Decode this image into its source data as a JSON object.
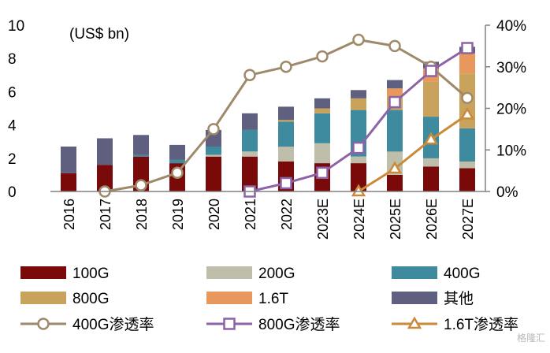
{
  "chart_data": {
    "type": "bar",
    "stacked": true,
    "unit_label": "(US$ bn)",
    "categories": [
      "2016",
      "2017",
      "2018",
      "2019",
      "2020",
      "2021",
      "2022",
      "2023E",
      "2024E",
      "2025E",
      "2026E",
      "2027E"
    ],
    "ylim_left": [
      0,
      10
    ],
    "ylim_right": [
      0,
      40
    ],
    "yticks_left": [
      "0",
      "2",
      "4",
      "6",
      "8",
      "10"
    ],
    "yticks_right": [
      "0%",
      "10%",
      "20%",
      "30%",
      "40%"
    ],
    "series": [
      {
        "name": "100G",
        "color": "#7a0a0a",
        "values": [
          1.1,
          1.6,
          2.1,
          1.7,
          2.1,
          2.1,
          1.8,
          1.7,
          1.7,
          1.0,
          1.5,
          1.4
        ]
      },
      {
        "name": "200G",
        "color": "#bfbeab",
        "values": [
          0,
          0,
          0,
          0,
          0.1,
          0.3,
          0.9,
          1.2,
          0.4,
          1.4,
          0.5,
          0.4
        ]
      },
      {
        "name": "400G",
        "color": "#3e8a9e",
        "values": [
          0,
          0,
          0.1,
          0.2,
          0.5,
          1.3,
          1.5,
          1.8,
          2.8,
          2.5,
          2.5,
          2.0
        ]
      },
      {
        "name": "800G",
        "color": "#c9a35c",
        "values": [
          0,
          0,
          0,
          0,
          0,
          0,
          0.1,
          0.3,
          0.7,
          0.8,
          2.1,
          3.3
        ]
      },
      {
        "name": "1.6T",
        "color": "#e8975d",
        "values": [
          0,
          0,
          0,
          0,
          0,
          0,
          0,
          0,
          0,
          0.5,
          0.8,
          1.2
        ]
      },
      {
        "name": "其他",
        "color": "#5f5f7f",
        "values": [
          1.6,
          1.6,
          1.2,
          0.9,
          1.0,
          1.0,
          0.8,
          0.6,
          0.5,
          0.5,
          0.4,
          0.4
        ]
      }
    ],
    "lines": [
      {
        "name": "400G渗透率",
        "color": "#9e8a6a",
        "marker": "circle",
        "axis": "right",
        "values": [
          null,
          0,
          1.5,
          4.5,
          15,
          28,
          30,
          32.5,
          36.5,
          35,
          30,
          22.5
        ]
      },
      {
        "name": "800G渗透率",
        "color": "#8c63a7",
        "marker": "square",
        "axis": "right",
        "values": [
          null,
          null,
          null,
          null,
          null,
          0,
          2,
          4.5,
          10.5,
          21.5,
          29,
          34.5
        ]
      },
      {
        "name": "1.6T渗透率",
        "color": "#cb8a3a",
        "marker": "triangle",
        "axis": "right",
        "values": [
          null,
          null,
          null,
          null,
          null,
          null,
          null,
          null,
          0,
          5.5,
          12.5,
          18.5
        ]
      }
    ],
    "legend_position": "bottom",
    "grid": false
  },
  "watermark": "格隆汇"
}
